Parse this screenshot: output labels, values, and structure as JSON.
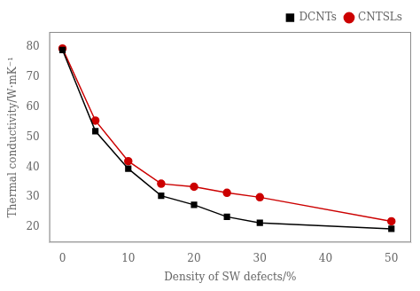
{
  "chart_data": {
    "type": "line",
    "xlabel": "Density of SW defects/%",
    "ylabel": "Thermal conductivity/W·mK⁻¹",
    "x": [
      0,
      5,
      10,
      15,
      20,
      25,
      30,
      50
    ],
    "series": [
      {
        "name": "DCNTs",
        "color": "#000000",
        "marker": "square",
        "line_style": "solid",
        "values": [
          79,
          52,
          39.5,
          30.5,
          27.5,
          23.5,
          21.5,
          19.5
        ]
      },
      {
        "name": "CNTSLs",
        "color": "#cc0000",
        "marker": "circle",
        "line_style": "solid",
        "values": [
          79.5,
          55.5,
          42,
          34.5,
          33.5,
          31.5,
          30,
          22
        ]
      }
    ],
    "xlim": [
      -2,
      53
    ],
    "xticks": [
      0,
      10,
      20,
      30,
      40,
      50
    ],
    "ylim": [
      15,
      85
    ],
    "yticks": [
      20,
      30,
      40,
      50,
      60,
      70,
      80
    ],
    "grid": false,
    "legend": "upper right"
  }
}
